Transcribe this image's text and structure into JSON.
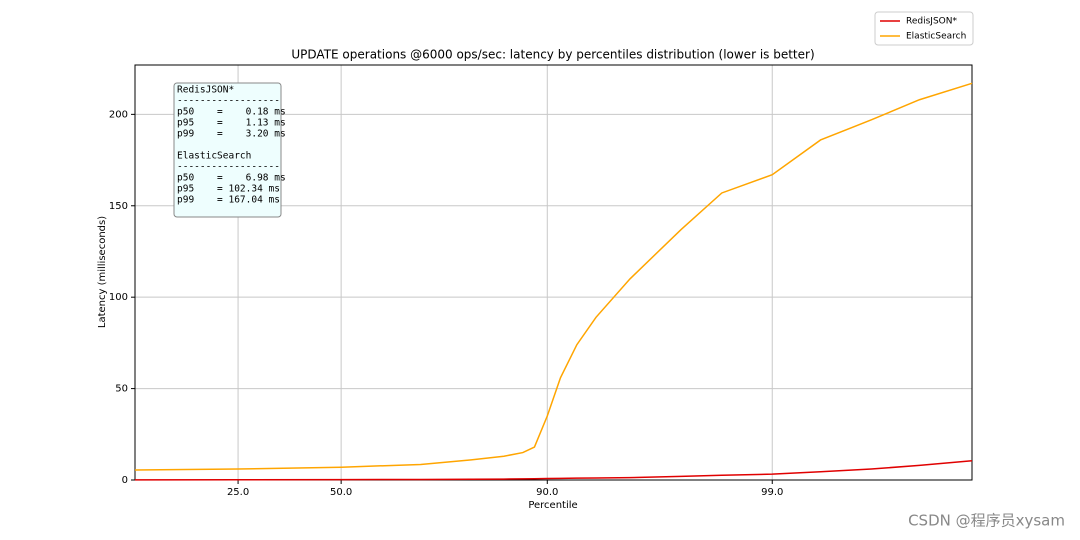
{
  "chart_data": {
    "type": "line",
    "title": "UPDATE operations @6000 ops/sec: latency by percentiles distribution (lower is better)",
    "x_label": "Percentile",
    "y_label": "Latency (milliseconds)",
    "xscale": "logit",
    "grid": true,
    "legend": "upper right outside",
    "xlim": [
      10,
      99.88
    ],
    "ylim": [
      0,
      227
    ],
    "xticks": [
      {
        "value": 25,
        "label": "25.0"
      },
      {
        "value": 50,
        "label": "50.0"
      },
      {
        "value": 90,
        "label": "90.0"
      },
      {
        "value": 99,
        "label": "99.0"
      }
    ],
    "yticks": [
      0,
      50,
      100,
      150,
      200
    ],
    "x": [
      10,
      25,
      50,
      70,
      80,
      85,
      87.4,
      88.7,
      90,
      91.2,
      92.5,
      93.8,
      95.6,
      97.4,
      98.3,
      99,
      99.4,
      99.65,
      99.79,
      99.88
    ],
    "series": [
      {
        "name": "RedisJSON*",
        "color": "#e00000",
        "values": [
          0.1,
          0.15,
          0.18,
          0.3,
          0.4,
          0.5,
          0.6,
          0.7,
          0.8,
          0.9,
          1.0,
          1.1,
          1.3,
          2,
          2.6,
          3.2,
          4.5,
          6,
          8,
          10.5
        ]
      },
      {
        "name": "ElasticSearch",
        "color": "#ffa500",
        "values": [
          5.5,
          6,
          7,
          8.5,
          11,
          13,
          15,
          18,
          35,
          56,
          74,
          89,
          110,
          137,
          157,
          167,
          186,
          197,
          208,
          217
        ]
      }
    ],
    "annotation": [
      "RedisJSON*",
      "------------------",
      "p50    =    0.18 ms",
      "p95    =    1.13 ms",
      "p99    =    3.20 ms",
      "ElasticSearch",
      "------------------",
      "p50    =    6.98 ms",
      "p95    = 102.34 ms",
      "p99    = 167.04 ms"
    ],
    "watermark": "CSDN @程序员xysam"
  }
}
